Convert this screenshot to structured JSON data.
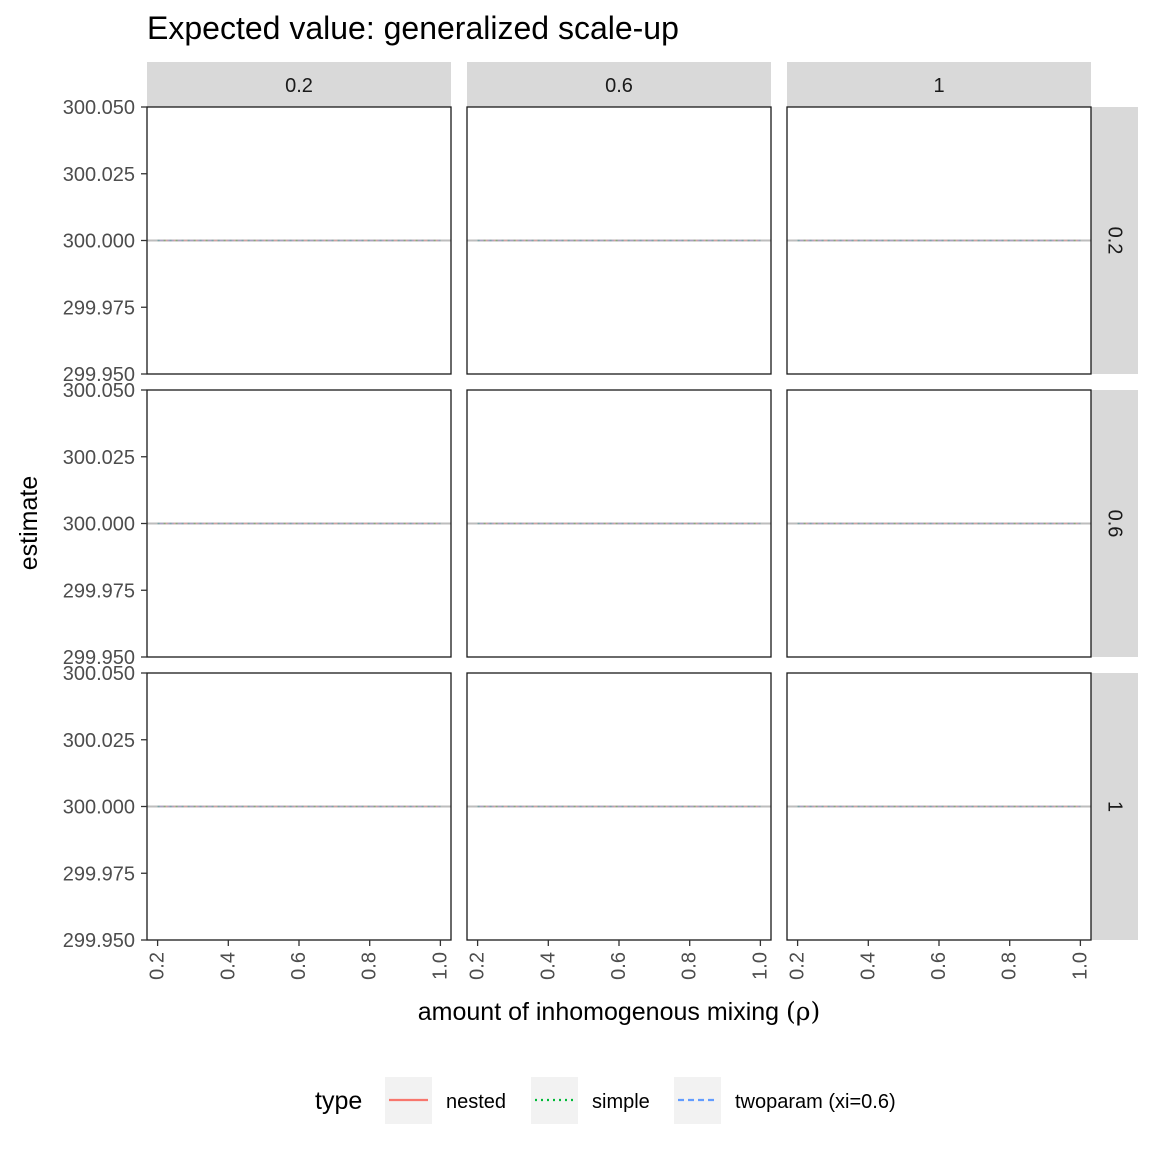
{
  "chart_data": {
    "type": "line",
    "title": "Expected value: generalized scale-up",
    "xlabel_main": "amount of inhomogenous mixing ",
    "xlabel_symbol": "(ρ)",
    "ylabel": "estimate",
    "column_strips": [
      "0.2",
      "0.6",
      "1"
    ],
    "row_strips": [
      "0.2",
      "0.6",
      "1"
    ],
    "x_ticks": [
      "0.2",
      "0.4",
      "0.6",
      "0.8",
      "1.0"
    ],
    "y_ticks": [
      "299.950",
      "299.975",
      "300.000",
      "300.025",
      "300.050"
    ],
    "xlim": [
      0.17,
      1.03
    ],
    "ylim": [
      299.95,
      300.05
    ],
    "grid": false,
    "legend_position": "bottom",
    "legend": {
      "title": "type",
      "entries": [
        {
          "label": "nested",
          "color": "#F8766D",
          "linetype": "solid"
        },
        {
          "label": "simple",
          "color": "#00BA38",
          "linetype": "dotted"
        },
        {
          "label": "twoparam (xi=0.6)",
          "color": "#619CFF",
          "linetype": "dashed"
        }
      ]
    },
    "x": [
      0.2,
      0.4,
      0.6,
      0.8,
      1.0
    ],
    "series": [
      {
        "name": "nested",
        "values": [
          300,
          300,
          300,
          300,
          300
        ]
      },
      {
        "name": "simple",
        "values": [
          300,
          300,
          300,
          300,
          300
        ]
      },
      {
        "name": "twoparam (xi=0.6)",
        "values": [
          300,
          300,
          300,
          300,
          300
        ]
      }
    ],
    "reference_line": {
      "y": 300,
      "color": "#bdbdbd"
    }
  }
}
